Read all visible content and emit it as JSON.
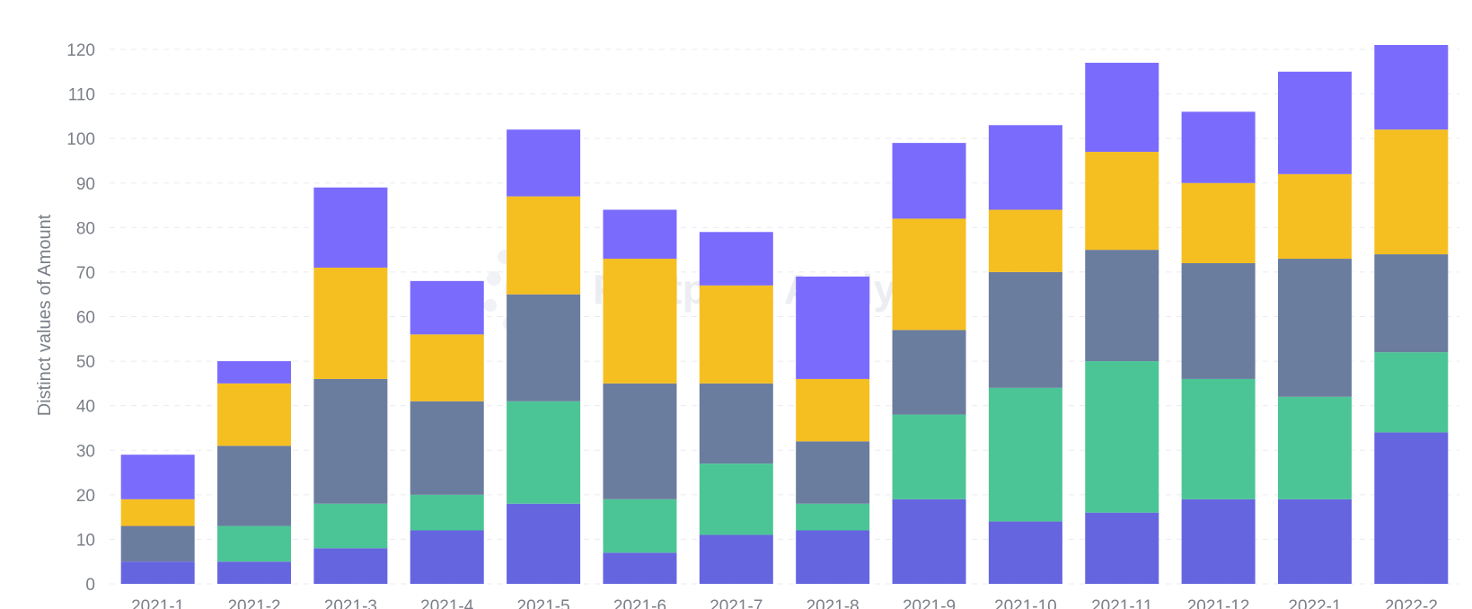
{
  "watermark": "Footprint Analytics",
  "chart_data": {
    "type": "bar",
    "stacked": true,
    "title": "",
    "xlabel": "",
    "ylabel": "Distinct values of Amount",
    "ylim": [
      0,
      120
    ],
    "yticks": [
      0,
      10,
      20,
      30,
      40,
      50,
      60,
      70,
      80,
      90,
      100,
      110,
      120
    ],
    "grid": true,
    "legend": "none",
    "categories": [
      "2021-1",
      "2021-2",
      "2021-3",
      "2021-4",
      "2021-5",
      "2021-6",
      "2021-7",
      "2021-8",
      "2021-9",
      "2021-10",
      "2021-11",
      "2021-12",
      "2022-1",
      "2022-2"
    ],
    "series": [
      {
        "color": "#6665e0",
        "values": [
          5,
          5,
          8,
          12,
          18,
          7,
          11,
          12,
          19,
          14,
          16,
          19,
          19,
          34
        ]
      },
      {
        "color": "#4cc596",
        "values": [
          0,
          8,
          10,
          8,
          23,
          12,
          16,
          6,
          19,
          30,
          34,
          27,
          23,
          18
        ]
      },
      {
        "color": "#6b7d9f",
        "values": [
          8,
          18,
          28,
          21,
          24,
          26,
          18,
          14,
          19,
          26,
          25,
          26,
          31,
          22
        ]
      },
      {
        "color": "#f6bf21",
        "values": [
          6,
          14,
          25,
          15,
          22,
          28,
          22,
          14,
          25,
          14,
          22,
          18,
          19,
          28
        ]
      },
      {
        "color": "#7b6bfd",
        "values": [
          10,
          5,
          18,
          12,
          15,
          11,
          12,
          23,
          17,
          19,
          20,
          16,
          23,
          19
        ]
      }
    ]
  }
}
